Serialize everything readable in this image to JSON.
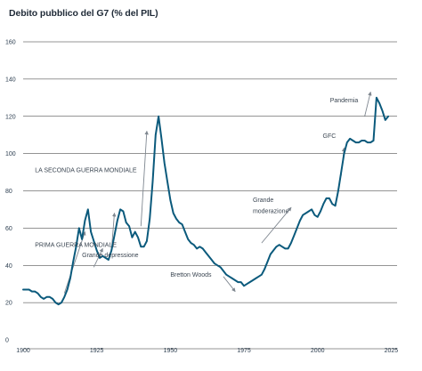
{
  "chart_data": {
    "type": "line",
    "title": "Debito pubblico del G7 (% del PIL)",
    "xlabel": "",
    "ylabel": "",
    "xlim": [
      1900,
      2027
    ],
    "ylim": [
      0,
      160
    ],
    "x_ticks": [
      1900,
      1925,
      1950,
      1975,
      2000,
      2025
    ],
    "y_ticks": [
      0,
      20,
      40,
      60,
      80,
      100,
      120,
      140,
      160
    ],
    "grid": "horizontal",
    "legend": "none",
    "line_color": "#0b5a7c",
    "series": [
      {
        "x": [
          1900,
          1901,
          1902,
          1903,
          1904,
          1905,
          1906,
          1907,
          1908,
          1909,
          1910,
          1911,
          1912,
          1913,
          1914,
          1915,
          1916,
          1917,
          1918,
          1919,
          1920,
          1921,
          1922,
          1923,
          1924,
          1925,
          1926,
          1927,
          1928,
          1929,
          1930,
          1931,
          1932,
          1933,
          1934,
          1935,
          1936,
          1937,
          1938,
          1939,
          1940,
          1941,
          1942,
          1943,
          1944,
          1945,
          1946,
          1947,
          1948,
          1949,
          1950,
          1951,
          1952,
          1953,
          1954,
          1955,
          1956,
          1957,
          1958,
          1959,
          1960,
          1961,
          1962,
          1963,
          1964,
          1965,
          1966,
          1967,
          1968,
          1969,
          1970,
          1971,
          1972,
          1973,
          1974,
          1975,
          1976,
          1977,
          1978,
          1979,
          1980,
          1981,
          1982,
          1983,
          1984,
          1985,
          1986,
          1987,
          1988,
          1989,
          1990,
          1991,
          1992,
          1993,
          1994,
          1995,
          1996,
          1997,
          1998,
          1999,
          2000,
          2001,
          2002,
          2003,
          2004,
          2005,
          2006,
          2007,
          2008,
          2009,
          2010,
          2011,
          2012,
          2013,
          2014,
          2015,
          2016,
          2017,
          2018,
          2019,
          2020,
          2021,
          2022,
          2023,
          2024
        ],
        "values": [
          27,
          27,
          27,
          26,
          26,
          25,
          23,
          22,
          23,
          23,
          22,
          20,
          19,
          20,
          23,
          27,
          33,
          42,
          50,
          60,
          54,
          64,
          70,
          58,
          53,
          48,
          44,
          45,
          44,
          43,
          48,
          56,
          64,
          70,
          69,
          63,
          61,
          55,
          58,
          55,
          50,
          50,
          53,
          65,
          85,
          110,
          120,
          108,
          95,
          85,
          75,
          68,
          65,
          63,
          62,
          58,
          54,
          52,
          51,
          49,
          50,
          49,
          47,
          45,
          43,
          41,
          40,
          39,
          37,
          35,
          34,
          33,
          32,
          31,
          31,
          29,
          30,
          31,
          32,
          33,
          34,
          35,
          38,
          42,
          46,
          48,
          50,
          51,
          50,
          49,
          49,
          52,
          56,
          60,
          64,
          67,
          68,
          69,
          70,
          67,
          66,
          69,
          73,
          76,
          76,
          73,
          72,
          80,
          90,
          100,
          106,
          108,
          107,
          106,
          106,
          107,
          107,
          106,
          106,
          107,
          130,
          127,
          123,
          118,
          120
        ]
      }
    ],
    "annotations": [
      {
        "text": "LA SECONDA GUERRA MONDIALE"
      },
      {
        "text": "PRIMA GUERRA MONDIALE"
      },
      {
        "text": "Grande depressione"
      },
      {
        "text": "Bretton Woods"
      },
      {
        "text": "Grande"
      },
      {
        "text": "moderazione"
      },
      {
        "text": "GFC"
      },
      {
        "text": "Pandemia"
      }
    ]
  }
}
